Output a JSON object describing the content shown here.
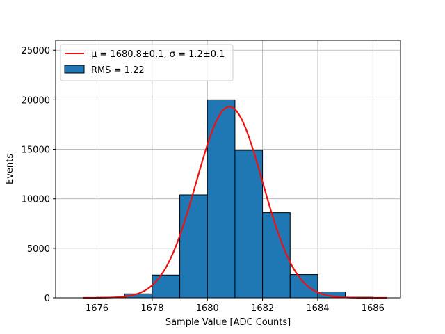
{
  "chart_data": {
    "type": "bar",
    "subtype": "histogram-with-fit",
    "xlabel": "Sample Value [ADC Counts]",
    "ylabel": "Events",
    "xlim": [
      1674.5,
      1687.0
    ],
    "ylim": [
      0,
      26000
    ],
    "xticks": [
      1676,
      1678,
      1680,
      1682,
      1684,
      1686
    ],
    "yticks": [
      0,
      5000,
      10000,
      15000,
      20000,
      25000
    ],
    "grid": true,
    "legend_position": "top-left",
    "histogram": {
      "name": "RMS = 1.22",
      "color": "#1f77b4",
      "edge_color": "#000000",
      "bins": [
        {
          "left": 1675,
          "right": 1676,
          "value": 0
        },
        {
          "left": 1676,
          "right": 1677,
          "value": 50
        },
        {
          "left": 1677,
          "right": 1678,
          "value": 400
        },
        {
          "left": 1678,
          "right": 1679,
          "value": 2300
        },
        {
          "left": 1679,
          "right": 1680,
          "value": 10400
        },
        {
          "left": 1680,
          "right": 1681,
          "value": 20000
        },
        {
          "left": 1681,
          "right": 1682,
          "value": 14900
        },
        {
          "left": 1682,
          "right": 1683,
          "value": 8600
        },
        {
          "left": 1683,
          "right": 1684,
          "value": 2350
        },
        {
          "left": 1684,
          "right": 1685,
          "value": 600
        },
        {
          "left": 1685,
          "right": 1686,
          "value": 60
        }
      ]
    },
    "fit": {
      "name_prefix": "μ = 1680.8±0.1, σ = 1.2±0.1",
      "color": "#ee1111",
      "mu": 1680.8,
      "sigma": 1.2,
      "amplitude": 19300,
      "x_range": [
        1675.5,
        1686.5
      ]
    }
  }
}
